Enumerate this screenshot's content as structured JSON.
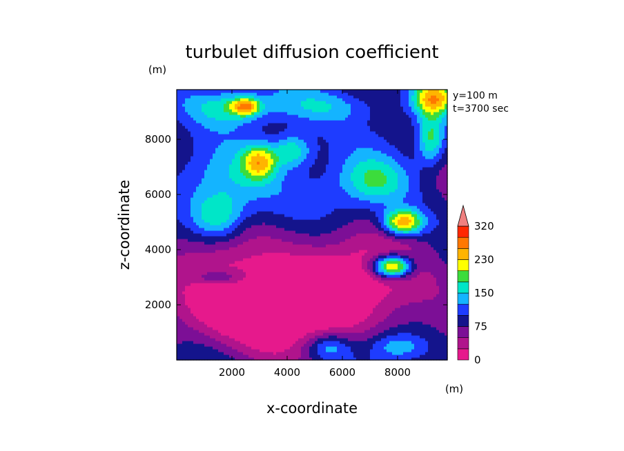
{
  "chart_data": {
    "type": "heatmap",
    "title": "turbulet diffusion coefficient",
    "xlabel": "x-coordinate",
    "ylabel": "z-coordinate",
    "x_unit": "(m)",
    "y_unit": "(m)",
    "annotations": [
      "y=100 m",
      "t=3700 sec"
    ],
    "xlim": [
      0,
      9800
    ],
    "ylim": [
      0,
      9800
    ],
    "xticks": [
      2000,
      4000,
      6000,
      8000
    ],
    "yticks": [
      2000,
      4000,
      6000,
      8000
    ],
    "xtick_labels": [
      "2000",
      "4000",
      "6000",
      "8000"
    ],
    "ytick_labels": [
      "2000",
      "4000",
      "6000",
      "8000"
    ],
    "colorbar": {
      "levels": [
        0,
        25,
        50,
        75,
        100,
        125,
        150,
        175,
        200,
        230,
        260,
        290,
        320
      ],
      "tick_labels": [
        "0",
        "75",
        "150",
        "230",
        "320"
      ],
      "tick_values": [
        0,
        75,
        150,
        230,
        320
      ],
      "colors": [
        "#e6198c",
        "#b0148c",
        "#7c0f96",
        "#14148c",
        "#1e3cff",
        "#14b4ff",
        "#00e6c8",
        "#3cdc3c",
        "#ffff00",
        "#ffb400",
        "#ff7800",
        "#ff2800",
        "#f08080"
      ],
      "extend": "max"
    },
    "features": [
      {
        "x": 3200,
        "z": 1500,
        "sx": 3200,
        "sz": 1400,
        "v": -80
      },
      {
        "x": 5000,
        "z": 3000,
        "sx": 5000,
        "sz": 1800,
        "v": -90
      },
      {
        "x": 2000,
        "z": 6500,
        "sx": 1800,
        "sz": 1200,
        "v": 40
      },
      {
        "x": 5000,
        "z": 6000,
        "sx": 2500,
        "sz": 1500,
        "v": 30
      },
      {
        "x": 1500,
        "z": 5200,
        "sx": 900,
        "sz": 800,
        "v": 80
      },
      {
        "x": 1800,
        "z": 9200,
        "sx": 1500,
        "sz": 700,
        "v": 80
      },
      {
        "x": 2500,
        "z": 9200,
        "sx": 500,
        "sz": 300,
        "v": 140
      },
      {
        "x": 3000,
        "z": 7200,
        "sx": 600,
        "sz": 600,
        "v": 130
      },
      {
        "x": 7800,
        "z": 3400,
        "sx": 700,
        "sz": 400,
        "v": 210
      },
      {
        "x": 8200,
        "z": 5000,
        "sx": 700,
        "sz": 450,
        "v": 170
      },
      {
        "x": 9300,
        "z": 9500,
        "sx": 700,
        "sz": 600,
        "v": 150
      },
      {
        "x": 9200,
        "z": 8000,
        "sx": 500,
        "sz": 900,
        "v": 100
      },
      {
        "x": 4200,
        "z": 7600,
        "sx": 700,
        "sz": 600,
        "v": 90
      },
      {
        "x": 7200,
        "z": 6500,
        "sx": 1200,
        "sz": 800,
        "v": 60
      },
      {
        "x": 5500,
        "z": 9200,
        "sx": 2000,
        "sz": 600,
        "v": 50
      },
      {
        "x": 1500,
        "z": 3000,
        "sx": 1000,
        "sz": 300,
        "v": 60
      },
      {
        "x": 5500,
        "z": 500,
        "sx": 800,
        "sz": 500,
        "v": 70
      },
      {
        "x": 8000,
        "z": 500,
        "sx": 1000,
        "sz": 500,
        "v": 60
      }
    ]
  }
}
